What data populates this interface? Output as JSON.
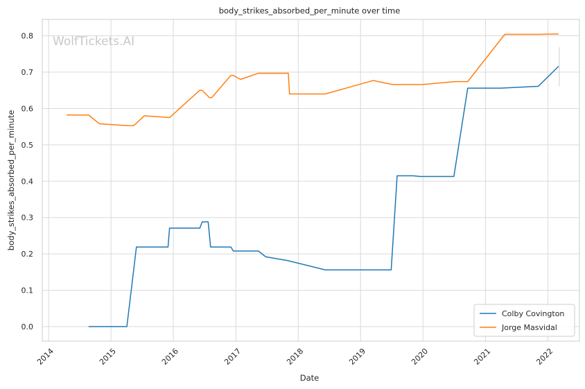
{
  "watermark": "WolfTickets.AI",
  "chart_data": {
    "type": "line",
    "title": "body_strikes_absorbed_per_minute over time",
    "xlabel": "Date",
    "ylabel": "body_strikes_absorbed_per_minute",
    "xlim": [
      "2013-11-25",
      "2022-07-05"
    ],
    "ylim": [
      -0.04,
      0.845
    ],
    "xticks": [
      "2014-01-01",
      "2015-01-01",
      "2016-01-01",
      "2017-01-01",
      "2018-01-01",
      "2019-01-01",
      "2020-01-01",
      "2021-01-01",
      "2022-01-01"
    ],
    "xtick_labels": [
      "2014",
      "2015",
      "2016",
      "2017",
      "2018",
      "2019",
      "2020",
      "2021",
      "2022"
    ],
    "yticks": [
      0.0,
      0.1,
      0.2,
      0.3,
      0.4,
      0.5,
      0.6,
      0.7,
      0.8
    ],
    "ytick_labels": [
      "0.0",
      "0.1",
      "0.2",
      "0.3",
      "0.4",
      "0.5",
      "0.6",
      "0.7",
      "0.8"
    ],
    "grid": true,
    "legend_position": "bottom-right",
    "series": [
      {
        "name": "Colby Covington",
        "color": "#1f77b4",
        "points": [
          [
            "2014-08-23",
            0.0
          ],
          [
            "2015-04-04",
            0.0
          ],
          [
            "2015-05-30",
            0.219
          ],
          [
            "2015-12-01",
            0.219
          ],
          [
            "2015-12-10",
            0.271
          ],
          [
            "2016-06-04",
            0.271
          ],
          [
            "2016-06-18",
            0.288
          ],
          [
            "2016-07-23",
            0.288
          ],
          [
            "2016-08-06",
            0.219
          ],
          [
            "2016-12-03",
            0.219
          ],
          [
            "2016-12-17",
            0.208
          ],
          [
            "2017-05-13",
            0.208
          ],
          [
            "2017-06-25",
            0.192
          ],
          [
            "2017-10-28",
            0.182
          ],
          [
            "2018-06-09",
            0.156
          ],
          [
            "2019-06-29",
            0.156
          ],
          [
            "2019-08-03",
            0.415
          ],
          [
            "2019-11-05",
            0.415
          ],
          [
            "2019-12-14",
            0.413
          ],
          [
            "2020-06-30",
            0.413
          ],
          [
            "2020-09-19",
            0.656
          ],
          [
            "2021-03-31",
            0.656
          ],
          [
            "2021-11-06",
            0.661
          ],
          [
            "2022-03-05",
            0.716
          ]
        ]
      },
      {
        "name": "Jorge Masvidal",
        "color": "#ff7f0e",
        "points": [
          [
            "2014-04-16",
            0.582
          ],
          [
            "2014-08-23",
            0.582
          ],
          [
            "2014-10-25",
            0.558
          ],
          [
            "2015-04-04",
            0.553
          ],
          [
            "2015-05-15",
            0.553
          ],
          [
            "2015-07-15",
            0.58
          ],
          [
            "2015-12-10",
            0.575
          ],
          [
            "2016-06-04",
            0.65
          ],
          [
            "2016-06-18",
            0.65
          ],
          [
            "2016-07-30",
            0.63
          ],
          [
            "2016-08-13",
            0.63
          ],
          [
            "2016-12-03",
            0.691
          ],
          [
            "2016-12-17",
            0.691
          ],
          [
            "2017-01-28",
            0.68
          ],
          [
            "2017-05-13",
            0.697
          ],
          [
            "2017-11-04",
            0.697
          ],
          [
            "2017-11-11",
            0.64
          ],
          [
            "2018-06-09",
            0.64
          ],
          [
            "2019-03-16",
            0.677
          ],
          [
            "2019-07-06",
            0.666
          ],
          [
            "2019-12-31",
            0.666
          ],
          [
            "2020-07-11",
            0.674
          ],
          [
            "2020-09-19",
            0.674
          ],
          [
            "2021-04-24",
            0.804
          ],
          [
            "2021-11-06",
            0.804
          ],
          [
            "2022-03-05",
            0.805
          ]
        ]
      }
    ]
  }
}
